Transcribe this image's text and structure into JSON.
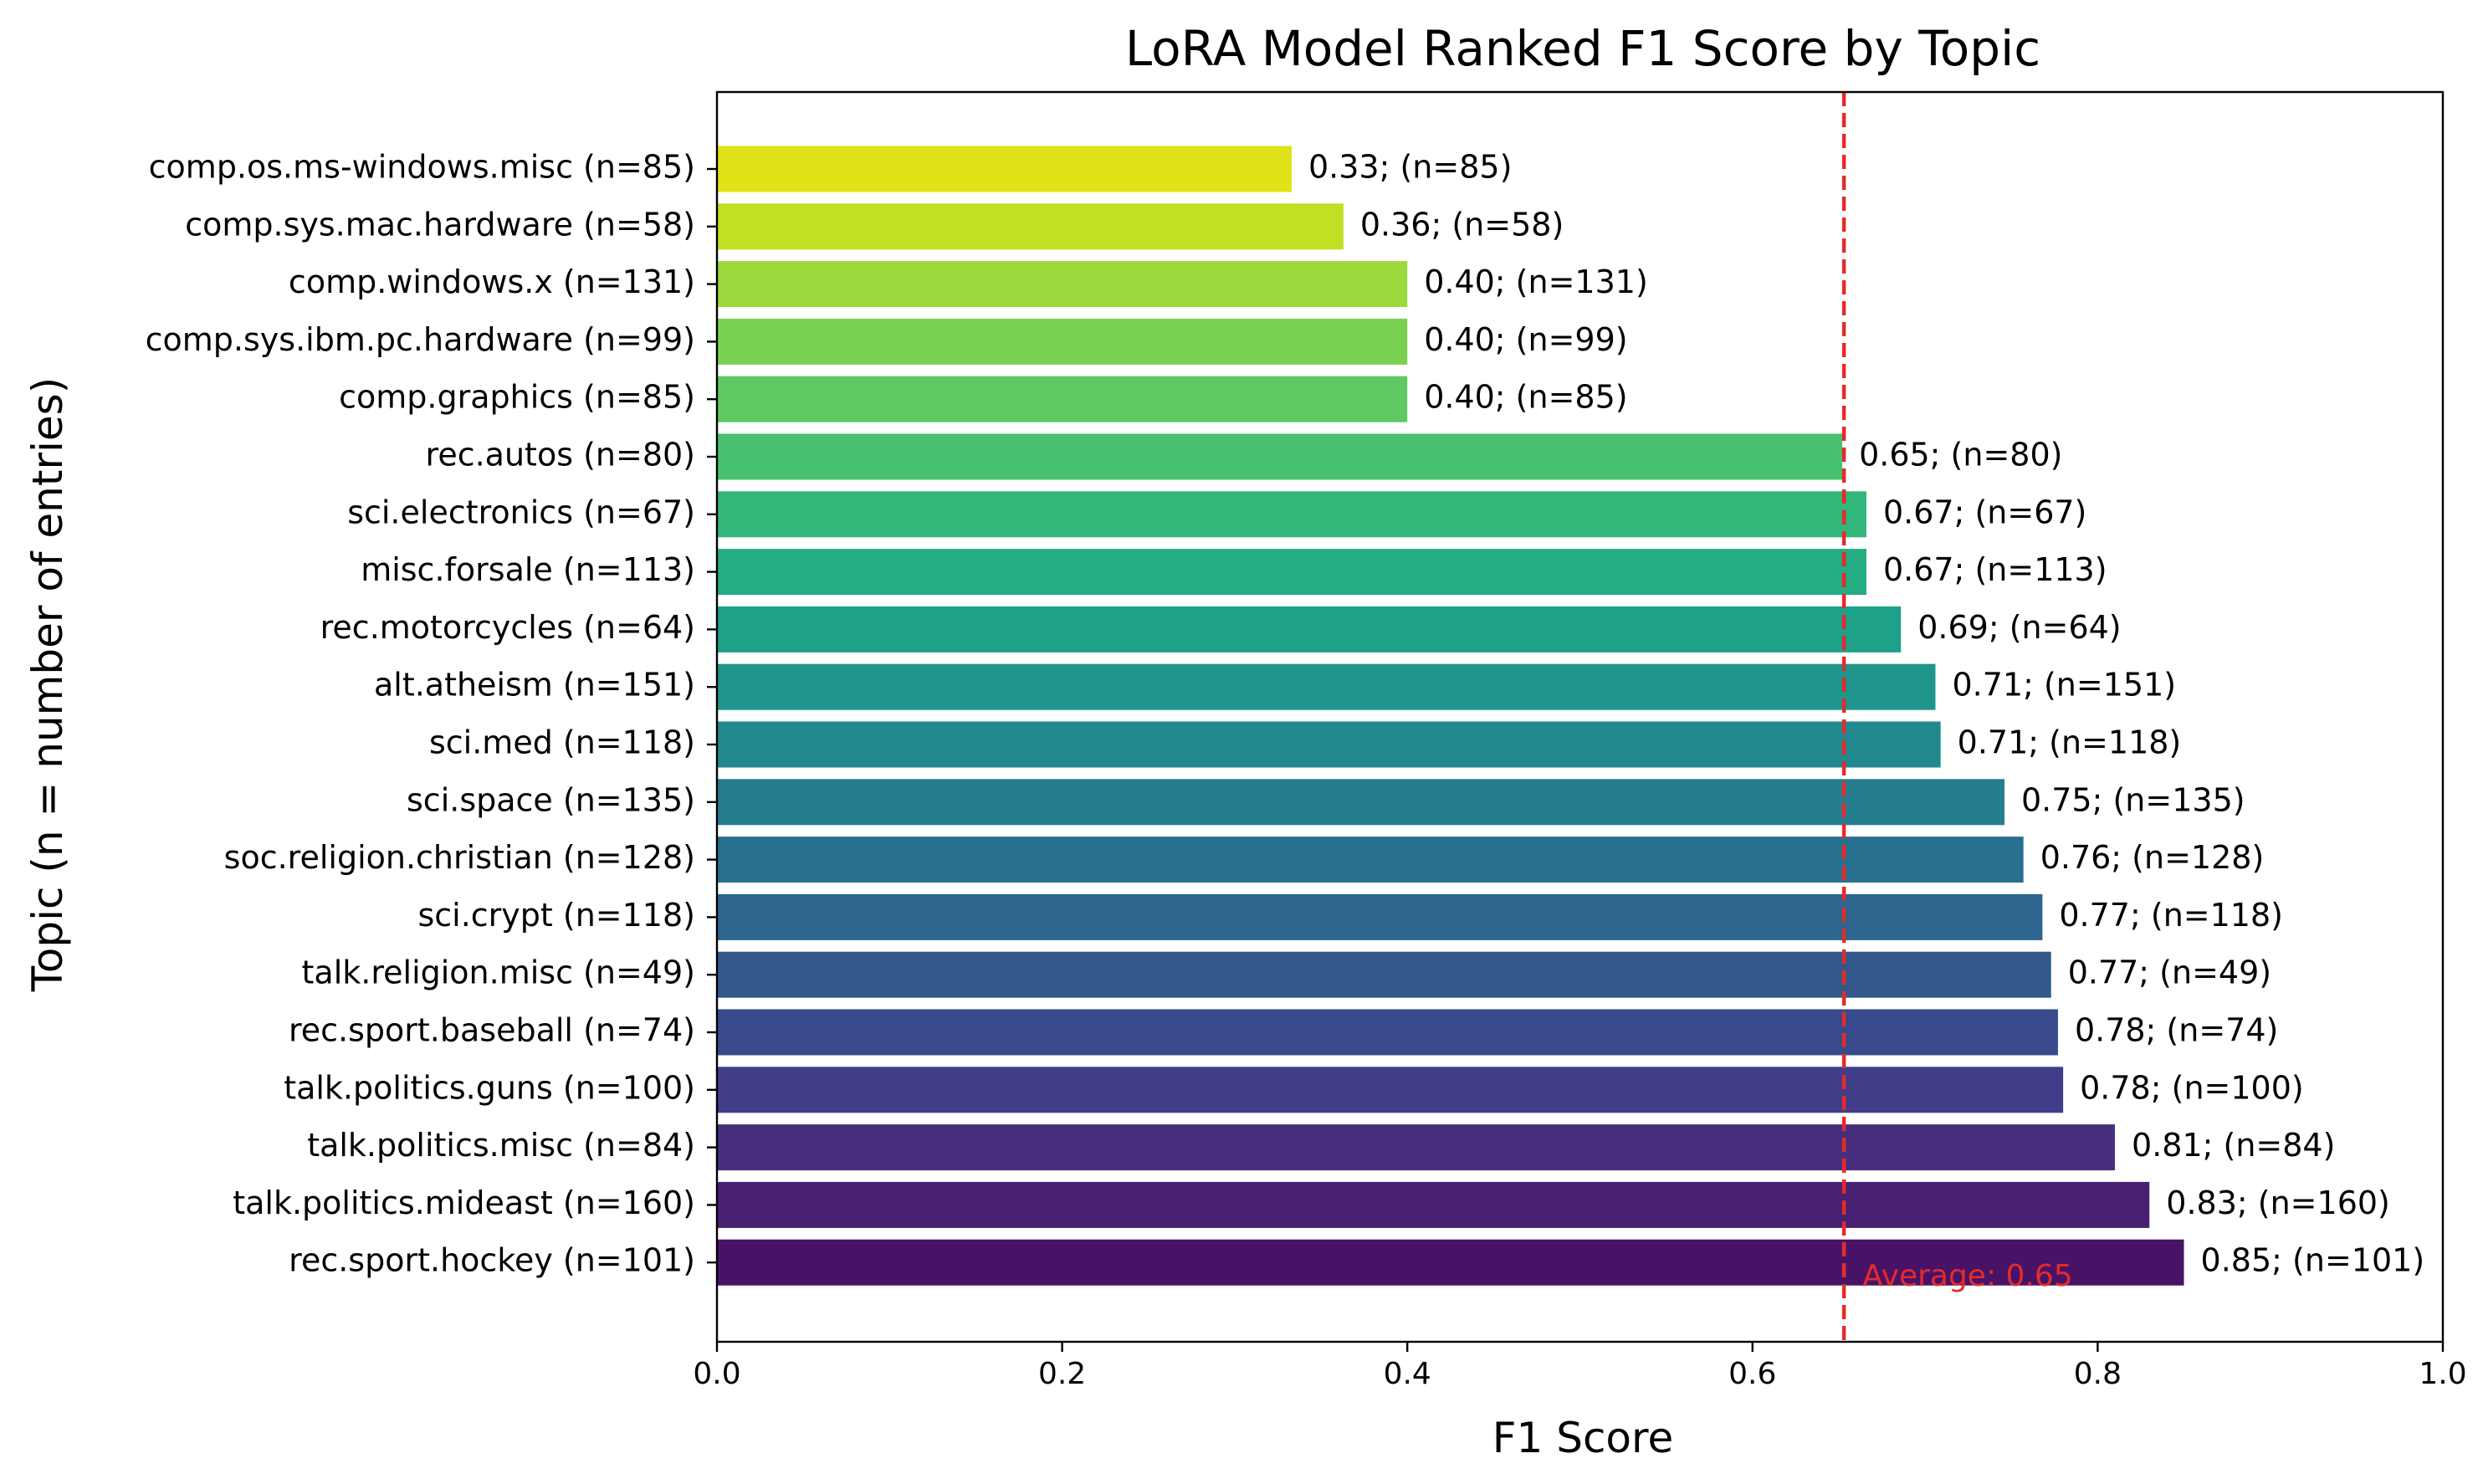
{
  "chart_data": {
    "type": "bar",
    "orientation": "horizontal",
    "title": "LoRA Model Ranked F1 Score by Topic",
    "xlabel": "F1 Score",
    "ylabel": "Topic (n = number of entries)",
    "xlim": [
      0.0,
      1.0
    ],
    "xticks": [
      "0.0",
      "0.2",
      "0.4",
      "0.6",
      "0.8",
      "1.0"
    ],
    "grid": false,
    "categories": [
      "comp.os.ms-windows.misc (n=85)",
      "comp.sys.mac.hardware (n=58)",
      "comp.windows.x (n=131)",
      "comp.sys.ibm.pc.hardware (n=99)",
      "comp.graphics (n=85)",
      "rec.autos (n=80)",
      "sci.electronics (n=67)",
      "misc.forsale (n=113)",
      "rec.motorcycles (n=64)",
      "alt.atheism (n=151)",
      "sci.med (n=118)",
      "sci.space (n=135)",
      "soc.religion.christian (n=128)",
      "sci.crypt (n=118)",
      "talk.religion.misc (n=49)",
      "rec.sport.baseball (n=74)",
      "talk.politics.guns (n=100)",
      "talk.politics.misc (n=84)",
      "talk.politics.mideast (n=160)",
      "rec.sport.hockey (n=101)"
    ],
    "values": [
      0.333,
      0.363,
      0.4,
      0.4,
      0.4,
      0.652,
      0.666,
      0.666,
      0.686,
      0.706,
      0.709,
      0.746,
      0.757,
      0.768,
      0.773,
      0.777,
      0.78,
      0.81,
      0.83,
      0.85
    ],
    "data_labels": [
      "0.33; (n=85)",
      "0.36; (n=58)",
      "0.40; (n=131)",
      "0.40; (n=99)",
      "0.40; (n=85)",
      "0.65; (n=80)",
      "0.67; (n=67)",
      "0.67; (n=113)",
      "0.69; (n=64)",
      "0.71; (n=151)",
      "0.71; (n=118)",
      "0.75; (n=135)",
      "0.76; (n=128)",
      "0.77; (n=118)",
      "0.77; (n=49)",
      "0.78; (n=74)",
      "0.78; (n=100)",
      "0.81; (n=84)",
      "0.83; (n=160)",
      "0.85; (n=101)"
    ],
    "colors": [
      "#dfe318",
      "#c2df23",
      "#9bd93c",
      "#7ad151",
      "#5ec962",
      "#48c16e",
      "#33b67a",
      "#25ac82",
      "#1fa088",
      "#1f958b",
      "#21898d",
      "#247e8e",
      "#28718e",
      "#2c658e",
      "#32588c",
      "#394a8c",
      "#403d89",
      "#472f7d",
      "#482173",
      "#481366"
    ],
    "average": {
      "value": 0.653,
      "label": "Average: 0.65",
      "color": "#e32b2b"
    }
  }
}
